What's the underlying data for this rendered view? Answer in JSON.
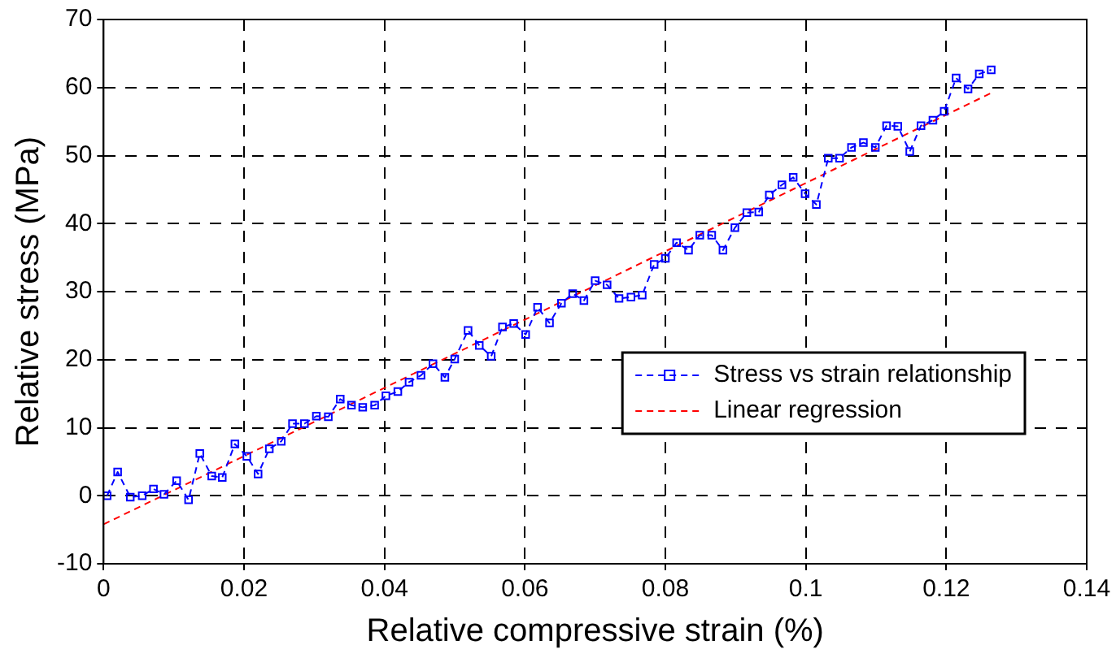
{
  "chart_data": {
    "type": "line",
    "xlabel": "Relative compressive strain (%)",
    "ylabel": "Relative stress (MPa)",
    "xlim": [
      0,
      0.14
    ],
    "xticks": [
      0,
      0.02,
      0.04,
      0.06,
      0.08,
      0.1,
      0.12,
      0.14
    ],
    "ylim": [
      -10,
      70
    ],
    "yticks": [
      -10,
      0,
      10,
      20,
      30,
      40,
      50,
      60,
      70
    ],
    "grid": true,
    "legend": "bottom right",
    "series": [
      {
        "name": "Stress vs strain relationship",
        "color": "#0000ff",
        "marker": "square",
        "line_style": "dashed",
        "x": [
          0.0005,
          0.002,
          0.0038,
          0.0055,
          0.0071,
          0.0086,
          0.0104,
          0.0121,
          0.0137,
          0.0154,
          0.0169,
          0.0187,
          0.0204,
          0.022,
          0.0236,
          0.0253,
          0.0269,
          0.0286,
          0.0303,
          0.032,
          0.0337,
          0.0353,
          0.0369,
          0.0386,
          0.0402,
          0.0419,
          0.0435,
          0.0452,
          0.0469,
          0.0486,
          0.05,
          0.0519,
          0.0535,
          0.0552,
          0.0568,
          0.0584,
          0.0601,
          0.0618,
          0.0635,
          0.0652,
          0.0668,
          0.0684,
          0.07,
          0.0717,
          0.0734,
          0.0751,
          0.0767,
          0.0784,
          0.08,
          0.0816,
          0.0833,
          0.0849,
          0.0866,
          0.0882,
          0.0899,
          0.0916,
          0.0933,
          0.0948,
          0.0966,
          0.0982,
          0.0999,
          0.1015,
          0.1032,
          0.1048,
          0.1065,
          0.1082,
          0.1099,
          0.1115,
          0.1131,
          0.1148,
          0.1164,
          0.1181,
          0.1197,
          0.1214,
          0.1231,
          0.1247,
          0.1264
        ],
        "values": [
          0,
          3.5,
          -0.2,
          0,
          1,
          0.2,
          2.2,
          -0.6,
          6.2,
          2.9,
          2.7,
          7.6,
          5.8,
          3.2,
          6.9,
          8,
          10.6,
          10.6,
          11.7,
          11.6,
          14.2,
          13.3,
          13,
          13.3,
          14.7,
          15.3,
          16.7,
          17.7,
          19.4,
          17.4,
          20.1,
          24.3,
          22.1,
          20.5,
          24.8,
          25.3,
          23.7,
          27.7,
          25.4,
          28.3,
          29.7,
          28.7,
          31.6,
          31,
          29,
          29.2,
          29.5,
          34,
          34.9,
          37.2,
          36.1,
          38.3,
          38.3,
          36.1,
          39.4,
          41.6,
          41.7,
          44.2,
          45.7,
          46.8,
          44.4,
          42.8,
          49.6,
          49.6,
          51.2,
          51.9,
          51.2,
          54.4,
          54.3,
          50.6,
          54.4,
          55.2,
          56.5,
          61.4,
          59.8,
          62,
          62.6
        ]
      },
      {
        "name": "Linear regression",
        "color": "#ff0000",
        "marker": "none",
        "line_style": "dashed",
        "x": [
          0,
          0.1264
        ],
        "values": [
          -4.2,
          59.2
        ]
      }
    ]
  }
}
